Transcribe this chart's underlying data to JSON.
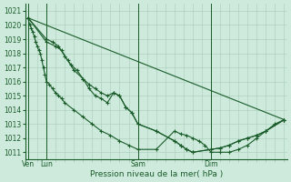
{
  "bg_color": "#ceeadc",
  "grid_color": "#a8ccb8",
  "line_color": "#1a5c2a",
  "marker_color": "#1a5c2a",
  "xlabel": "Pression niveau de la mer( hPa )",
  "ylim": [
    1010.5,
    1021.5
  ],
  "yticks": [
    1011,
    1012,
    1013,
    1014,
    1015,
    1016,
    1017,
    1018,
    1019,
    1020,
    1021
  ],
  "day_labels": [
    "Ven",
    "Lun",
    "Sam",
    "Dim"
  ],
  "day_positions": [
    0,
    12,
    72,
    120
  ],
  "total_steps": 168,
  "series": [
    {
      "x": [
        0,
        1,
        2,
        3,
        4,
        5,
        6,
        7,
        8,
        9,
        10,
        11,
        12,
        14,
        16,
        18,
        20,
        22,
        24,
        30,
        36,
        42,
        48,
        54,
        60,
        66,
        72,
        84,
        96,
        100,
        104,
        108,
        112,
        116,
        120,
        126,
        132,
        138,
        144,
        150,
        156,
        162,
        168
      ],
      "y": [
        1020.5,
        1020.0,
        1019.8,
        1019.5,
        1019.2,
        1018.8,
        1018.5,
        1018.2,
        1018.0,
        1017.5,
        1017.0,
        1016.5,
        1016.0,
        1015.8,
        1015.5,
        1015.2,
        1015.0,
        1014.8,
        1014.5,
        1014.0,
        1013.5,
        1013.0,
        1012.5,
        1012.2,
        1011.8,
        1011.5,
        1011.2,
        1011.2,
        1012.5,
        1012.3,
        1012.2,
        1012.0,
        1011.8,
        1011.5,
        1011.0,
        1011.0,
        1011.0,
        1011.2,
        1011.5,
        1012.0,
        1012.5,
        1013.0,
        1013.3
      ]
    },
    {
      "x": [
        0,
        12,
        18,
        22,
        26,
        30,
        36,
        40,
        44,
        48,
        52,
        56,
        60,
        64,
        68,
        72,
        84,
        96,
        100,
        104,
        108,
        120,
        126,
        132,
        138,
        144,
        150,
        156,
        168
      ],
      "y": [
        1020.5,
        1018.8,
        1018.5,
        1018.2,
        1017.5,
        1016.8,
        1016.2,
        1015.5,
        1015.0,
        1014.8,
        1014.5,
        1015.2,
        1015.0,
        1014.2,
        1013.8,
        1013.0,
        1012.5,
        1011.8,
        1011.5,
        1011.2,
        1011.0,
        1011.2,
        1011.3,
        1011.5,
        1011.8,
        1012.0,
        1012.2,
        1012.5,
        1013.3
      ]
    },
    {
      "x": [
        0,
        12,
        16,
        20,
        24,
        28,
        32,
        36,
        40,
        44,
        48,
        52,
        56,
        60,
        64,
        68,
        72,
        84,
        96,
        100,
        104,
        108,
        120,
        126,
        132,
        138,
        144,
        150,
        156,
        168
      ],
      "y": [
        1020.5,
        1019.0,
        1018.8,
        1018.5,
        1017.8,
        1017.2,
        1016.8,
        1016.2,
        1015.8,
        1015.5,
        1015.2,
        1015.0,
        1015.2,
        1015.0,
        1014.2,
        1013.8,
        1013.0,
        1012.5,
        1011.8,
        1011.5,
        1011.2,
        1011.0,
        1011.2,
        1011.3,
        1011.5,
        1011.8,
        1012.0,
        1012.2,
        1012.5,
        1013.3
      ]
    },
    {
      "x": [
        0,
        168
      ],
      "y": [
        1020.5,
        1013.3
      ]
    }
  ]
}
